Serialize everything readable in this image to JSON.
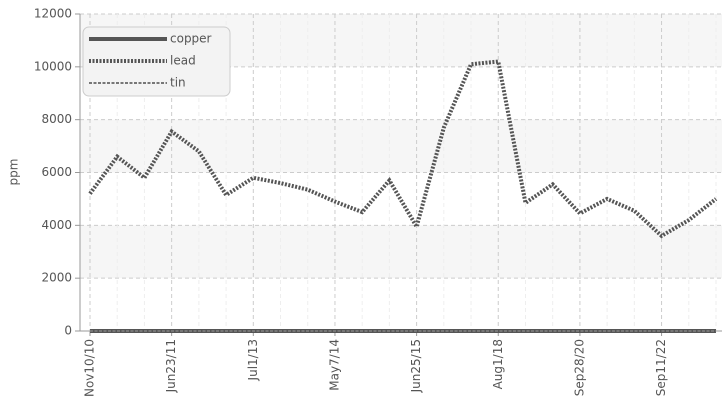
{
  "chart_data": {
    "type": "line",
    "ylabel": "ppm",
    "categories": [
      "Nov10/10",
      null,
      null,
      "Jun23/11",
      null,
      null,
      "Jul1/13",
      null,
      null,
      "May7/14",
      null,
      null,
      "Jun25/15",
      null,
      null,
      "Aug1/18",
      null,
      null,
      "Sep28/20",
      null,
      null,
      "Sep11/22",
      null,
      null
    ],
    "series": [
      {
        "name": "copper",
        "color": "#555555",
        "style": "solid",
        "values": [
          0,
          0,
          0,
          0,
          0,
          0,
          0,
          0,
          0,
          0,
          0,
          0,
          0,
          0,
          0,
          0,
          0,
          0,
          0,
          0,
          0,
          0,
          0,
          0
        ]
      },
      {
        "name": "lead",
        "color": "#555555",
        "style": "dotted",
        "values": [
          5200,
          6600,
          5800,
          7550,
          6800,
          5150,
          5800,
          5600,
          5350,
          4900,
          4500,
          5700,
          3950,
          7700,
          10100,
          10200,
          4850,
          5550,
          4450,
          5000,
          4550,
          3600,
          4200,
          5000
        ]
      },
      {
        "name": "tin",
        "color": "#777777",
        "style": "dashed",
        "values": [
          0,
          0,
          0,
          0,
          0,
          0,
          0,
          0,
          0,
          0,
          0,
          0,
          0,
          0,
          0,
          0,
          0,
          0,
          0,
          0,
          0,
          0,
          0,
          0
        ]
      }
    ],
    "ylim": [
      0,
      12000
    ],
    "yticks": [
      0,
      2000,
      4000,
      6000,
      8000,
      10000,
      12000
    ],
    "grid": true,
    "legend": "top-left"
  }
}
